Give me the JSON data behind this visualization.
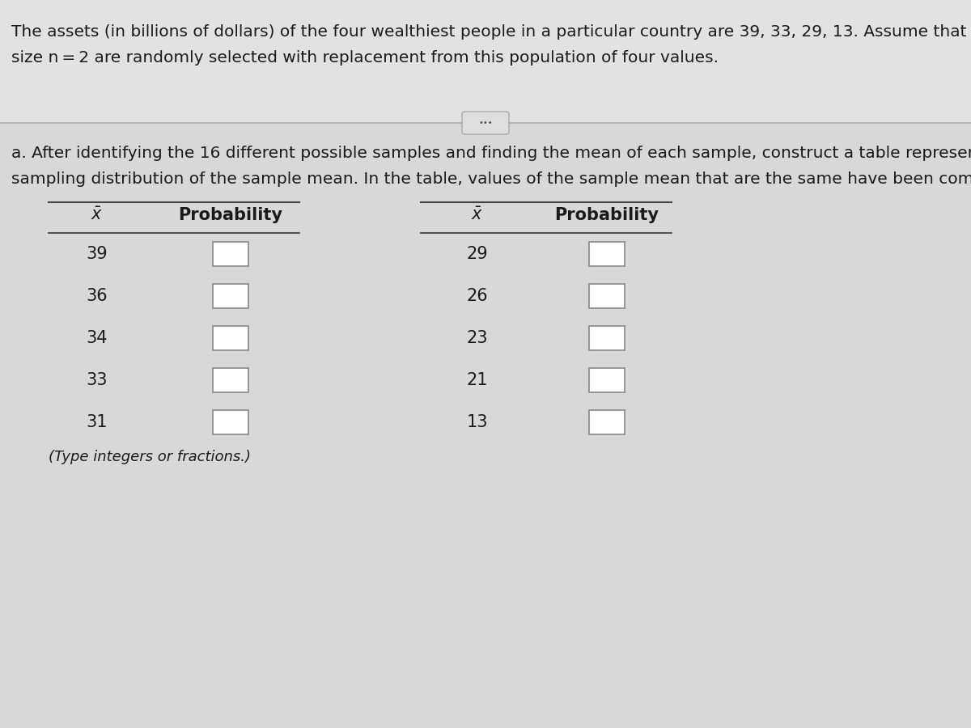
{
  "line1": "The assets (in billions of dollars) of the four wealthiest people in a particular country are 39, 33, 29, 13. Assume that samples c",
  "line2": "size n = 2 are randomly selected with replacement from this population of four values.",
  "part_a_line1": "a. After identifying the 16 different possible samples and finding the mean of each sample, construct a table representing the",
  "part_a_line2": "sampling distribution of the sample mean. In the table, values of the sample mean that are the same have been combined.",
  "footer_text": "(Type integers or fractions.)",
  "left_rows": [
    39,
    36,
    34,
    33,
    31
  ],
  "right_rows": [
    29,
    26,
    23,
    21,
    13
  ],
  "bg_top": "#dcdcdc",
  "bg_bottom": "#d8d8d8",
  "text_color": "#1a1a1a",
  "box_fill": "#ffffff",
  "box_edge": "#888888",
  "divider_color": "#aaaaaa",
  "title_fontsize": 14.5,
  "parta_fontsize": 14.5,
  "table_fontsize": 15,
  "header_fontsize": 15
}
